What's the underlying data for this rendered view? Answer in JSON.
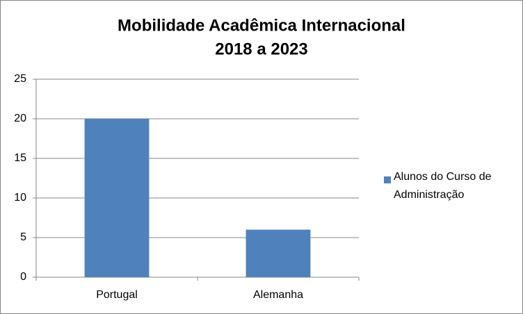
{
  "chart_data": {
    "type": "bar",
    "title": [
      "Mobilidade Acadêmica Internacional",
      "2018 a 2023"
    ],
    "categories": [
      "Portugal",
      "Alemanha"
    ],
    "series": [
      {
        "name": "Alunos do Curso de Administração",
        "color": "#4f81bd",
        "values": [
          20,
          6
        ]
      }
    ],
    "ylim": [
      0,
      25
    ],
    "yticks": [
      0,
      5,
      10,
      15,
      20,
      25
    ],
    "grid": true,
    "legend": "right"
  }
}
